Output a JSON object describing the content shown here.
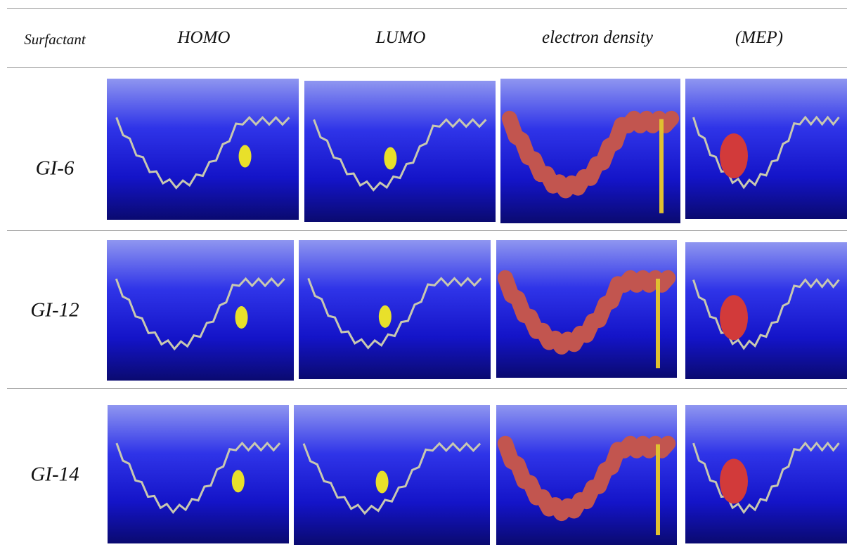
{
  "table": {
    "header": [
      "Surfactant",
      "HOMO",
      "LUMO",
      "electron density",
      "(MEP)"
    ],
    "rows": [
      {
        "label": "GI-6"
      },
      {
        "label": "GI-12"
      },
      {
        "label": "GI-14"
      }
    ]
  }
}
